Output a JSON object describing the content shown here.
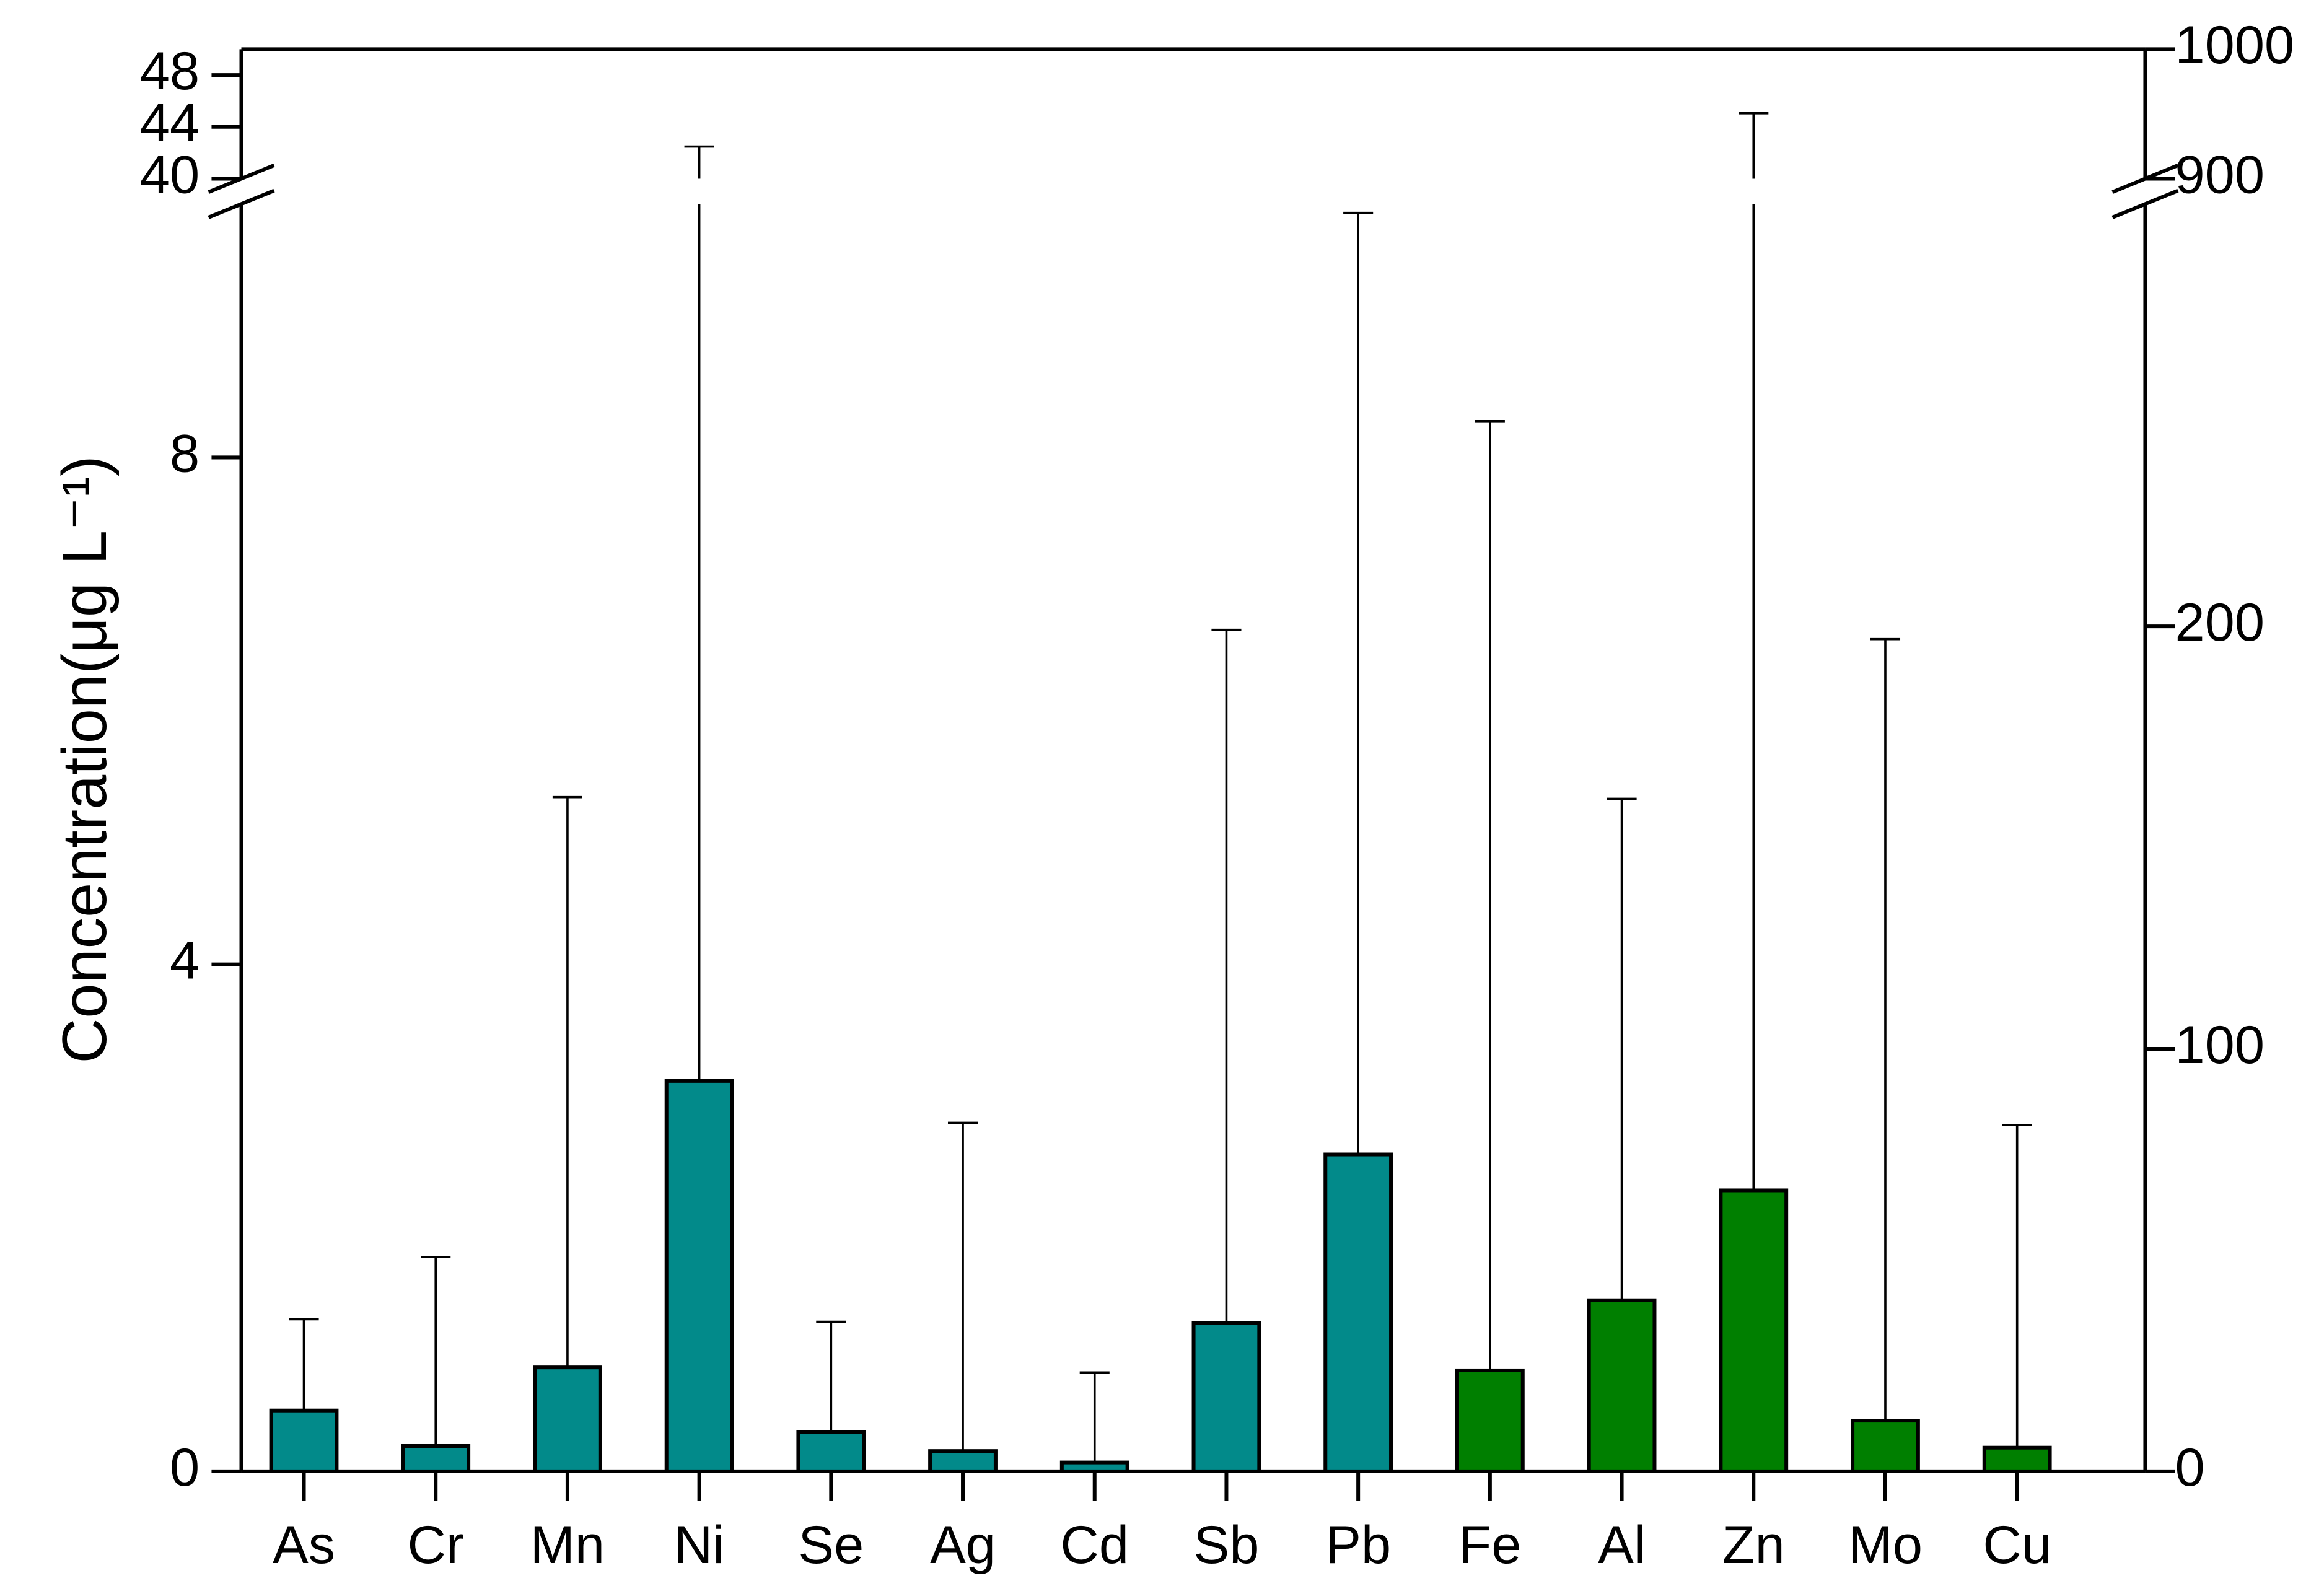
{
  "chart_data": {
    "type": "bar",
    "y_label": "Concentration(μg L⁻¹)",
    "categories": [
      "As",
      "Cr",
      "Mn",
      "Ni",
      "Se",
      "Ag",
      "Cd",
      "Sb",
      "Pb",
      "Fe",
      "Al",
      "Zn",
      "Mo",
      "Cu"
    ],
    "series": [
      {
        "color": "#028a8a",
        "values": [
          0.48,
          0.2,
          0.82,
          3.08,
          0.31,
          0.16,
          0.07,
          1.17,
          2.5,
          null,
          null,
          null,
          null,
          null
        ],
        "errors": [
          0.72,
          1.49,
          4.5,
          39.4,
          0.87,
          2.59,
          0.71,
          5.47,
          7.43,
          null,
          null,
          null,
          null,
          null
        ]
      },
      {
        "color": "#007f00",
        "axis": "y2",
        "values": [
          null,
          null,
          null,
          null,
          null,
          null,
          null,
          null,
          null,
          23.9,
          40.5,
          66.5,
          12.0,
          5.6
        ],
        "errors": [
          null,
          null,
          null,
          null,
          null,
          null,
          null,
          null,
          null,
          224.7,
          118.7,
          884,
          185,
          76.4
        ]
      }
    ],
    "ylim": [
      0,
      50
    ],
    "ybreak": [
      10,
      40
    ],
    "yticks": [
      0,
      4,
      8,
      40,
      44,
      48
    ],
    "y2lim": [
      0,
      1000
    ],
    "y2break": [
      300,
      900
    ],
    "y2ticks": [
      0,
      100,
      200,
      900,
      1000
    ]
  }
}
